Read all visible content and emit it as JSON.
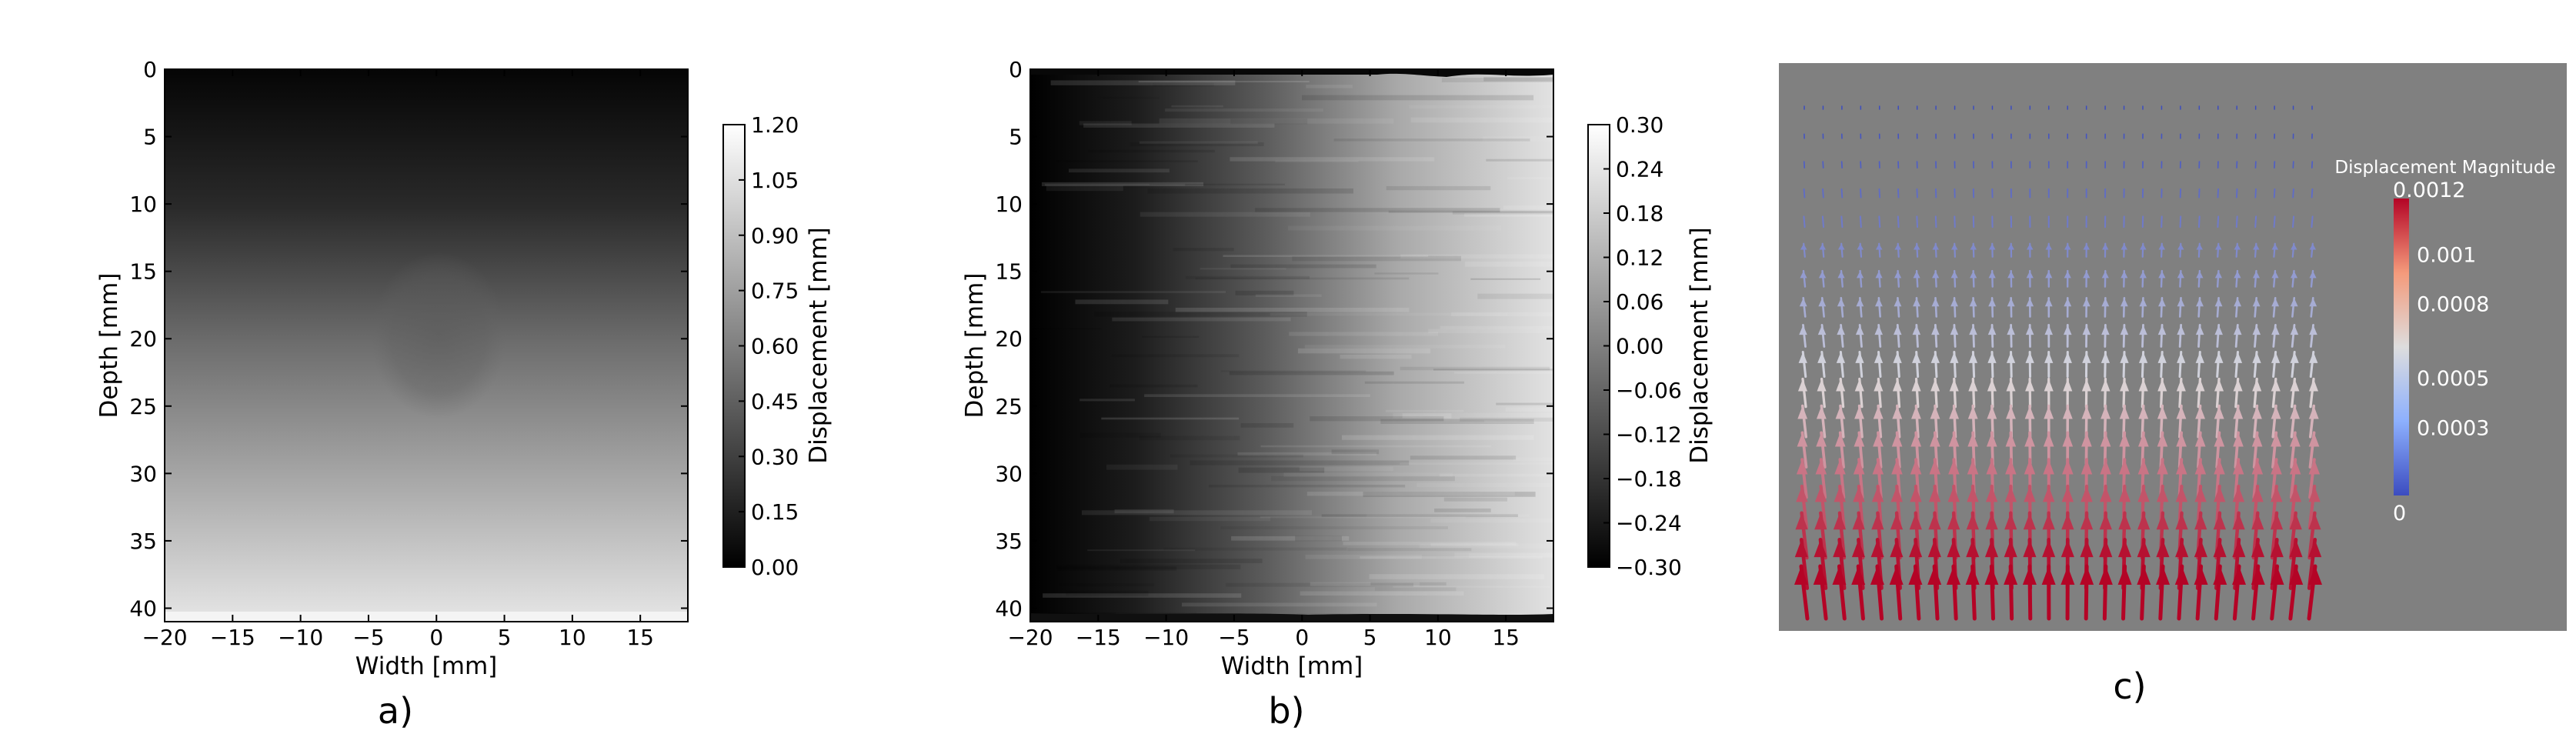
{
  "chart_data": [
    {
      "type": "heatmap",
      "panel_label": "a)",
      "xlabel": "Width [mm]",
      "ylabel": "Depth [mm]",
      "xlim": [
        -20,
        18.5
      ],
      "ylim": [
        41,
        0
      ],
      "xticks": [
        "−20",
        "−15",
        "−10",
        "−5",
        "0",
        "5",
        "10",
        "15"
      ],
      "xtick_values": [
        -20,
        -15,
        -10,
        -5,
        0,
        5,
        10,
        15
      ],
      "yticks": [
        "0",
        "5",
        "10",
        "15",
        "20",
        "25",
        "30",
        "35",
        "40"
      ],
      "ytick_values": [
        0,
        5,
        10,
        15,
        20,
        25,
        30,
        35,
        40
      ],
      "colorbar": {
        "label": "Displacement [mm]",
        "range": [
          0,
          1.2
        ],
        "ticks": [
          "0.00",
          "0.15",
          "0.30",
          "0.45",
          "0.60",
          "0.75",
          "0.90",
          "1.05",
          "1.20"
        ],
        "tick_values": [
          0,
          0.15,
          0.3,
          0.45,
          0.6,
          0.75,
          0.9,
          1.05,
          1.2
        ],
        "colormap": "gray"
      },
      "field": "displacement increases with depth from about 0.00 mm at the top to about 1.20 mm at the bottom, with a faint circular inclusion centred near width 0 mm, depth 22 mm"
    },
    {
      "type": "heatmap",
      "panel_label": "b)",
      "xlabel": "Width [mm]",
      "ylabel": "Depth [mm]",
      "xlim": [
        -20,
        18.5
      ],
      "ylim": [
        41,
        0
      ],
      "xticks": [
        "−20",
        "−15",
        "−10",
        "−5",
        "0",
        "5",
        "10",
        "15"
      ],
      "xtick_values": [
        -20,
        -15,
        -10,
        -5,
        0,
        5,
        10,
        15
      ],
      "yticks": [
        "0",
        "5",
        "10",
        "15",
        "20",
        "25",
        "30",
        "35",
        "40"
      ],
      "ytick_values": [
        0,
        5,
        10,
        15,
        20,
        25,
        30,
        35,
        40
      ],
      "colorbar": {
        "label": "Displacement [mm]",
        "range": [
          -0.3,
          0.3
        ],
        "ticks": [
          "−0.30",
          "−0.24",
          "−0.18",
          "−0.12",
          "−0.06",
          "0.00",
          "0.06",
          "0.12",
          "0.18",
          "0.24",
          "0.30"
        ],
        "tick_values": [
          -0.3,
          -0.24,
          -0.18,
          -0.12,
          -0.06,
          0,
          0.06,
          0.12,
          0.18,
          0.24,
          0.3
        ],
        "colormap": "gray"
      },
      "field": "displacement increases from about -0.30 mm at width -20 mm to about 0.30 mm at width 18 mm, with noisy horizontal streaks"
    },
    {
      "type": "vector_field",
      "panel_label": "c)",
      "background": "#808080",
      "colorbar": {
        "label": "Displacement Magnitude",
        "range": [
          0,
          0.0012
        ],
        "ticks": [
          "0.0012",
          "0.001",
          "0.0008",
          "0.0005",
          "0.0003",
          "0"
        ],
        "tick_values": [
          0.0012,
          0.001,
          0.0008,
          0.0005,
          0.0003,
          0
        ],
        "colormap": "cool-to-warm",
        "low_color": "#3b4cc0",
        "mid_color": "#dddddd",
        "high_color": "#b40426"
      },
      "grid": {
        "columns": 28,
        "rows": 18
      },
      "field": "arrows point upward; magnitude grows from near 0 at the top rows to about 0.0012 at the bottom rows"
    }
  ]
}
